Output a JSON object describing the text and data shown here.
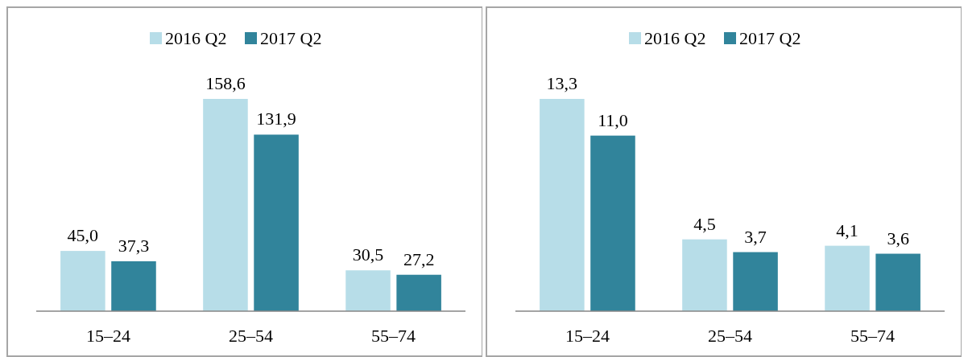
{
  "chart_data": [
    {
      "type": "bar",
      "categories": [
        "15–24",
        "25–54",
        "55–74"
      ],
      "legend": "top",
      "series": [
        {
          "name": "2016 Q2",
          "color": "#b7dde8",
          "values": [
            45.0,
            158.6,
            30.5
          ],
          "value_labels": [
            "45,0",
            "158,6",
            "30,5"
          ]
        },
        {
          "name": "2017 Q2",
          "color": "#31849b",
          "values": [
            37.3,
            131.9,
            27.2
          ],
          "value_labels": [
            "37,3",
            "131,9",
            "27,2"
          ]
        }
      ]
    },
    {
      "type": "bar",
      "categories": [
        "15–24",
        "25–54",
        "55–74"
      ],
      "legend": "top",
      "series": [
        {
          "name": "2016 Q2",
          "color": "#b7dde8",
          "values": [
            13.3,
            4.5,
            4.1
          ],
          "value_labels": [
            "13,3",
            "4,5",
            "4,1"
          ]
        },
        {
          "name": "2017 Q2",
          "color": "#31849b",
          "values": [
            11.0,
            3.7,
            3.6
          ],
          "value_labels": [
            "11,0",
            "3,7",
            "3,6"
          ]
        }
      ]
    }
  ]
}
